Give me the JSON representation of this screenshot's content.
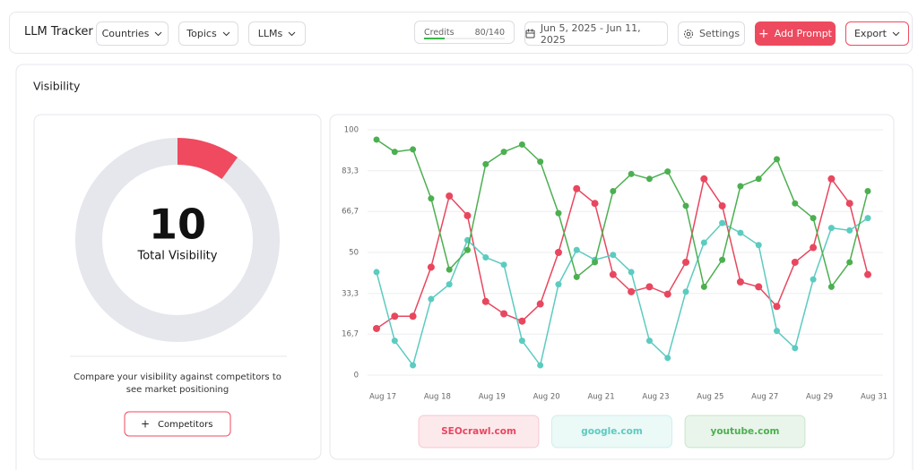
{
  "header": {
    "title": "LLM Tracker",
    "filters": [
      "Countries",
      "Topics",
      "LLMs"
    ],
    "credits_label": "Credits",
    "credits_value": "80/140",
    "date_range": "Jun 5, 2025 - Jun 11, 2025",
    "settings": "Settings",
    "add_prompt": "Add Prompt",
    "export": "Export"
  },
  "section_title": "Visibility",
  "donut": {
    "value": 10,
    "range": [
      0,
      100
    ],
    "label": "Total Visibility",
    "color": "#ef4a5f"
  },
  "description": "Compare your visibility against competitors to see market positioning",
  "competitors_button": "Competitors",
  "chart_data": {
    "type": "line",
    "categories": [
      "Aug 17",
      null,
      null,
      "Aug 18",
      null,
      null,
      "Aug 19",
      null,
      null,
      "Aug 20",
      null,
      null,
      "Aug 21",
      null,
      null,
      "Aug 23",
      null,
      null,
      "Aug 25",
      null,
      null,
      "Aug 27",
      null,
      null,
      "Aug 29",
      null,
      null,
      "Aug 31"
    ],
    "series": [
      {
        "name": "SEOcrawl.com",
        "color": "#e8475f",
        "values": [
          19,
          24,
          24,
          44,
          73,
          65,
          30,
          25,
          22,
          29,
          50,
          76,
          70,
          41,
          34,
          36,
          33,
          46,
          80,
          69,
          38,
          36,
          28,
          46,
          52,
          80,
          70,
          41
        ]
      },
      {
        "name": "google.com",
        "color": "#5ccbc0",
        "values": [
          42,
          14,
          4,
          31,
          37,
          55,
          48,
          45,
          14,
          4,
          37,
          51,
          47,
          49,
          42,
          14,
          7,
          34,
          54,
          62,
          58,
          53,
          18,
          11,
          39,
          60,
          59,
          64
        ]
      },
      {
        "name": "youtube.com",
        "color": "#4caf50",
        "values": [
          96,
          91,
          92,
          72,
          43,
          51,
          86,
          91,
          94,
          87,
          66,
          40,
          46,
          75,
          82,
          80,
          83,
          69,
          36,
          47,
          77,
          80,
          88,
          70,
          64,
          36,
          46,
          75
        ]
      }
    ],
    "ylim": [
      0,
      100
    ],
    "yticks": [
      0,
      {
        "value": 16.7,
        "label": "16,7"
      },
      {
        "value": 33.3,
        "label": "33,3"
      },
      50,
      {
        "value": 66.7,
        "label": "66,7"
      },
      {
        "value": 83.3,
        "label": "83,3"
      },
      100
    ],
    "grid": true
  }
}
